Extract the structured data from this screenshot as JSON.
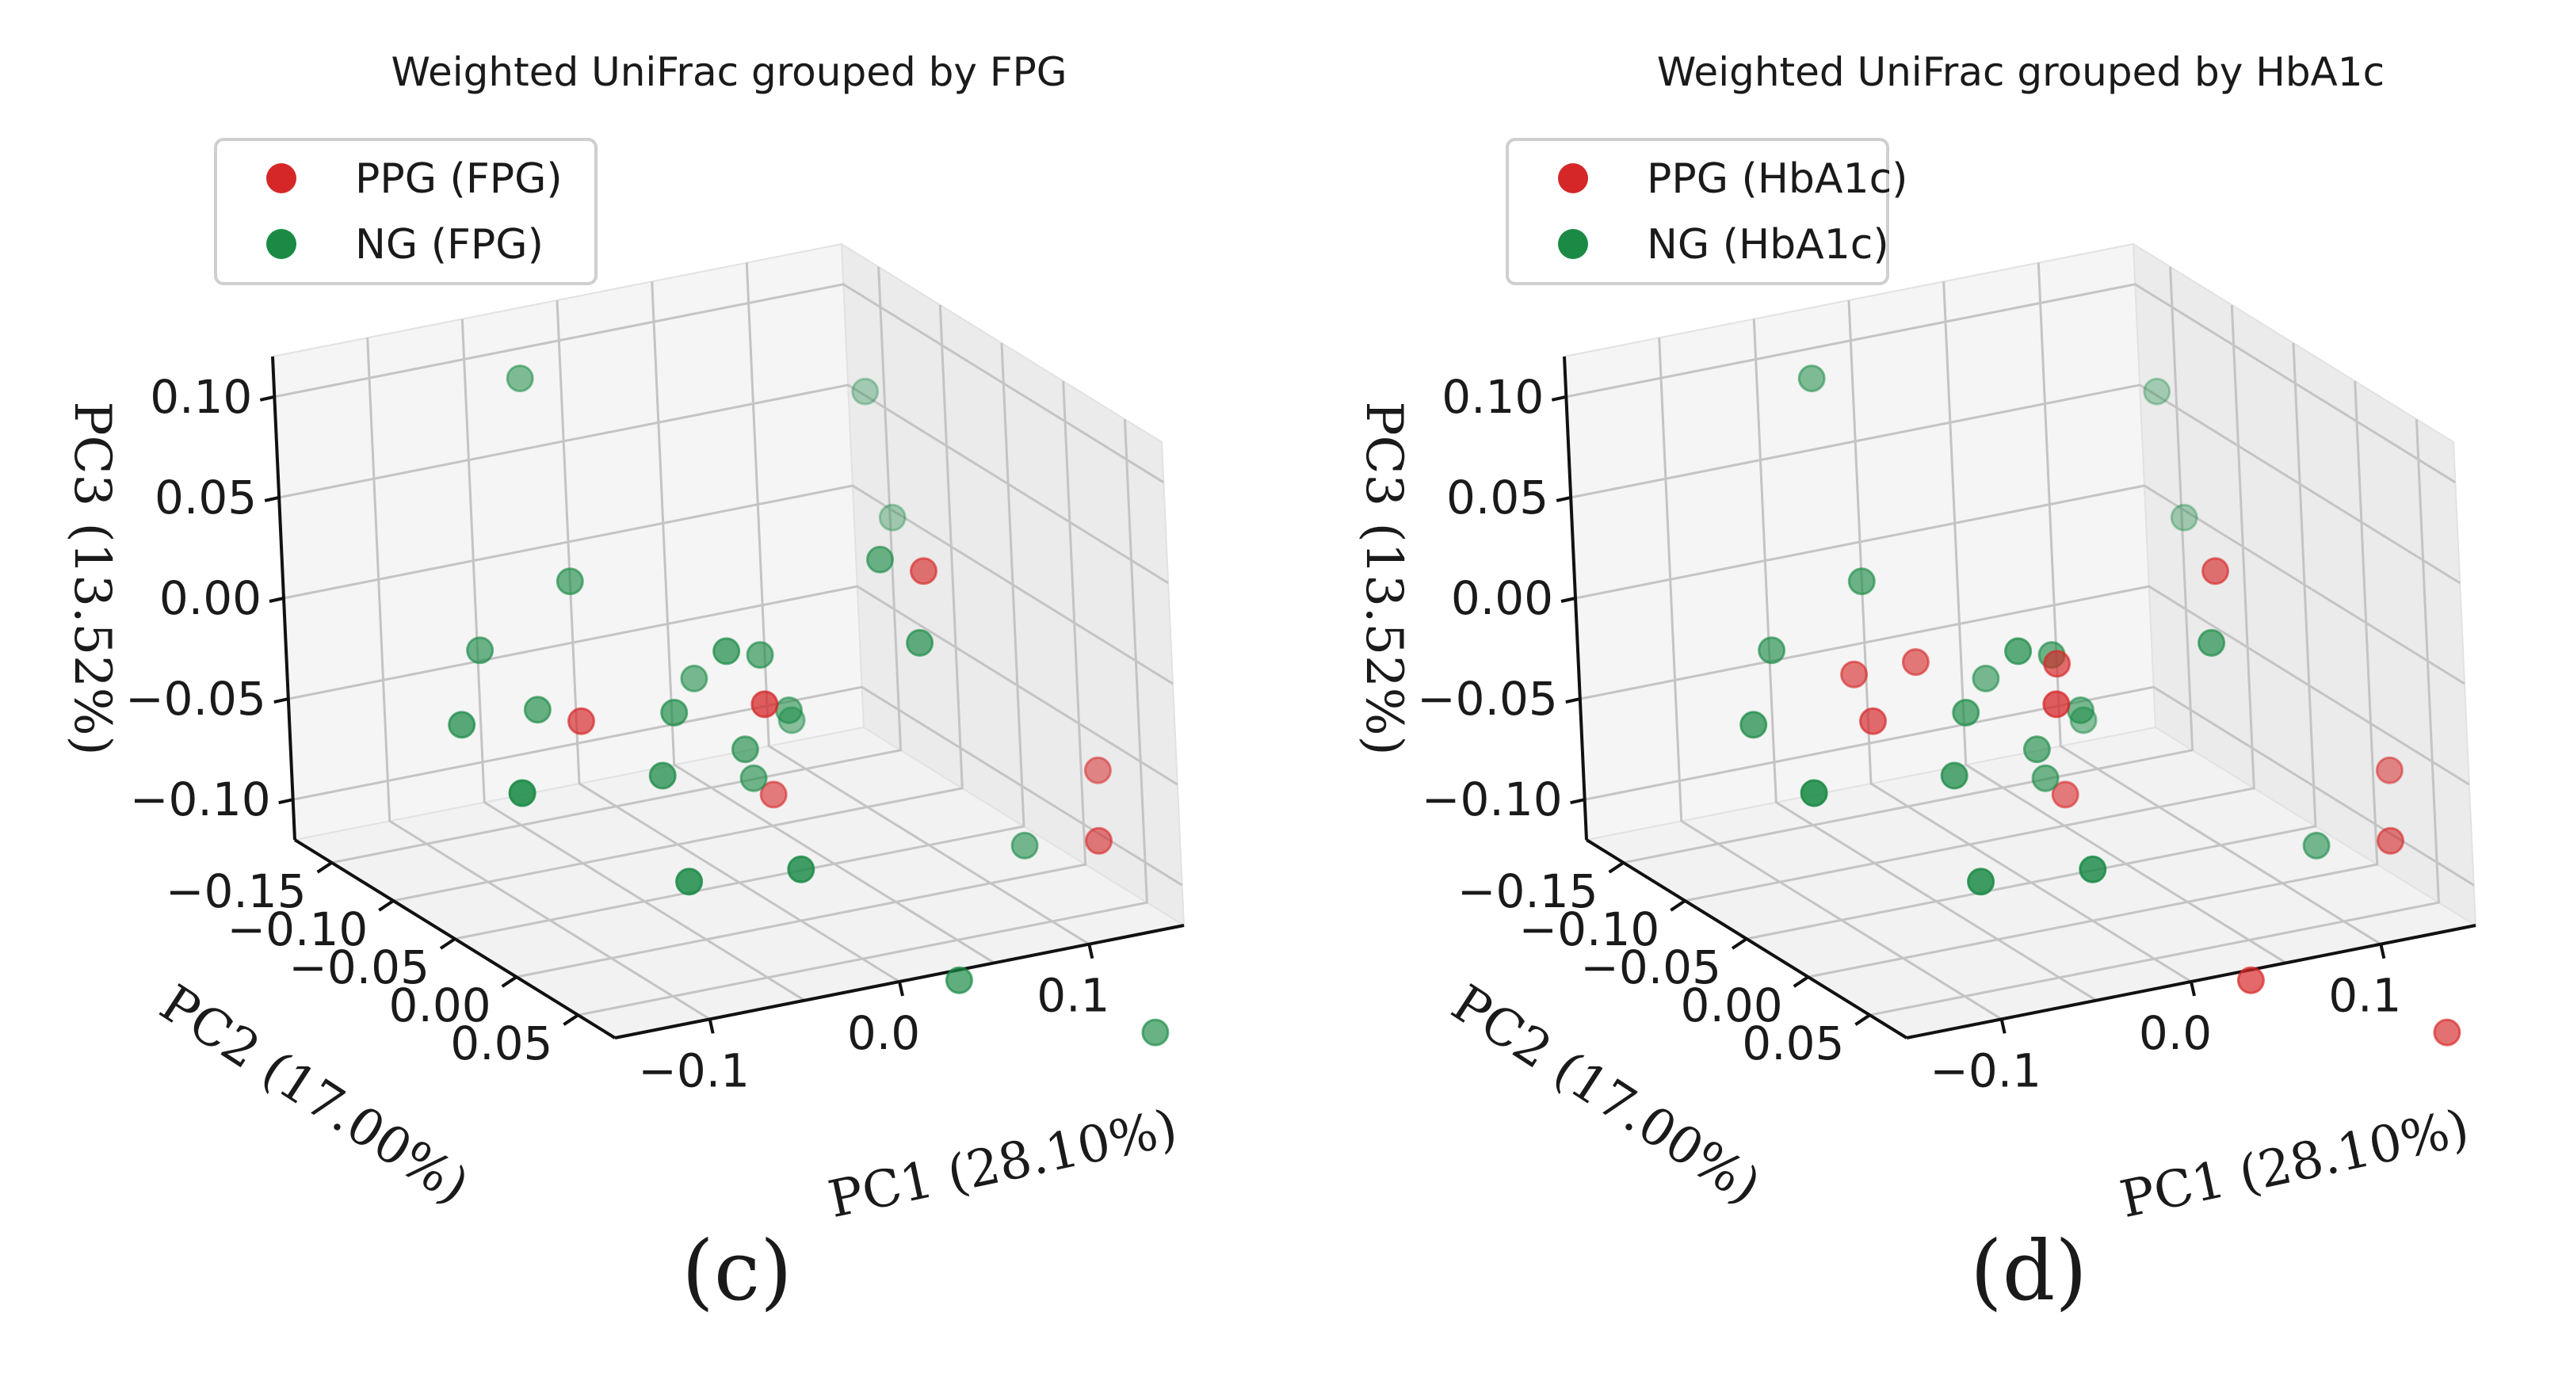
{
  "colors": {
    "ppg": "#d62728",
    "ng": "#1a8a45"
  },
  "chart_data": [
    {
      "type": "scatter",
      "panel_label": "(c)",
      "title": "Weighted UniFrac grouped by FPG",
      "legend": [
        "PPG (FPG)",
        "NG (FPG)"
      ],
      "xlabel": "PC1 (28.10%)",
      "ylabel": "PC2 (17.00%)",
      "zlabel": "PC3 (13.52%)",
      "xticks": [
        "0.1",
        "0.0",
        "−0.1"
      ],
      "yticks": [
        "−0.15",
        "−0.10",
        "−0.05",
        "0.00",
        "0.05"
      ],
      "zticks": [
        "0.10",
        "0.05",
        "0.00",
        "−0.05",
        "−0.10"
      ],
      "series": [
        {
          "name": "PPG (FPG)",
          "points": [
            [
              0.06,
              0.02,
              0.05
            ],
            [
              0.14,
              0.03,
              -0.06
            ],
            [
              0.12,
              0.06,
              -0.08
            ],
            [
              -0.02,
              0.01,
              -0.005
            ],
            [
              -0.06,
              -0.08,
              -0.04
            ],
            [
              0.02,
              -0.05,
              -0.08
            ]
          ]
        },
        {
          "name": "NG (FPG)",
          "points": [
            [
              0.14,
              -0.15,
              0.06
            ],
            [
              0.12,
              -0.1,
              0.02
            ],
            [
              0.05,
              0.0,
              0.05
            ],
            [
              0.05,
              0.03,
              0.02
            ],
            [
              -0.04,
              -0.15,
              0.1
            ],
            [
              -0.05,
              -0.1,
              0.02
            ],
            [
              0.01,
              -0.04,
              -0.005
            ],
            [
              -0.02,
              -0.02,
              0.01
            ],
            [
              -0.03,
              -0.05,
              -0.03
            ],
            [
              0.0,
              -0.08,
              -0.03
            ],
            [
              0.0,
              -0.04,
              -0.05
            ],
            [
              0.05,
              -0.08,
              -0.06
            ],
            [
              0.03,
              -0.05,
              -0.04
            ],
            [
              0.1,
              0.03,
              -0.09
            ],
            [
              -0.08,
              -0.13,
              -0.02
            ],
            [
              -0.07,
              -0.1,
              -0.04
            ],
            [
              -0.11,
              -0.1,
              -0.04
            ],
            [
              -0.07,
              0.02,
              -0.08
            ],
            [
              -0.13,
              -0.02,
              -0.04
            ],
            [
              -0.05,
              -0.03,
              -0.05
            ],
            [
              -0.03,
              0.05,
              -0.07
            ],
            [
              0.01,
              -0.05,
              -0.07
            ],
            [
              0.05,
              0.05,
              -0.14
            ],
            [
              0.12,
              0.1,
              -0.16
            ]
          ]
        }
      ]
    },
    {
      "type": "scatter",
      "panel_label": "(d)",
      "title": "Weighted UniFrac grouped by HbA1c",
      "legend": [
        "PPG (HbA1c)",
        "NG (HbA1c)"
      ],
      "xlabel": "PC1 (28.10%)",
      "ylabel": "PC2 (17.00%)",
      "zlabel": "PC3 (13.52%)",
      "xticks": [
        "0.1",
        "0.0",
        "−0.1"
      ],
      "yticks": [
        "−0.15",
        "−0.10",
        "−0.05",
        "0.00",
        "0.05"
      ],
      "zticks": [
        "0.10",
        "0.05",
        "0.00",
        "−0.05",
        "−0.10"
      ],
      "series": [
        {
          "name": "PPG (HbA1c)",
          "points": [
            [
              0.06,
              0.02,
              0.05
            ],
            [
              0.14,
              0.03,
              -0.06
            ],
            [
              0.12,
              0.06,
              -0.08
            ],
            [
              -0.02,
              0.01,
              -0.005
            ],
            [
              -0.06,
              -0.08,
              -0.04
            ],
            [
              0.02,
              -0.05,
              -0.08
            ],
            [
              0.0,
              -0.02,
              0.0
            ],
            [
              -0.03,
              -0.09,
              -0.02
            ],
            [
              -0.05,
              -0.11,
              -0.03
            ],
            [
              0.05,
              0.05,
              -0.14
            ],
            [
              0.12,
              0.1,
              -0.16
            ]
          ]
        },
        {
          "name": "NG (HbA1c)",
          "points": [
            [
              0.14,
              -0.15,
              0.06
            ],
            [
              0.12,
              -0.1,
              0.02
            ],
            [
              0.05,
              0.03,
              0.02
            ],
            [
              -0.04,
              -0.15,
              0.1
            ],
            [
              -0.05,
              -0.1,
              0.02
            ],
            [
              0.01,
              -0.04,
              -0.005
            ],
            [
              -0.02,
              -0.02,
              0.01
            ],
            [
              -0.03,
              -0.05,
              -0.03
            ],
            [
              0.0,
              -0.08,
              -0.03
            ],
            [
              0.0,
              -0.04,
              -0.05
            ],
            [
              0.05,
              -0.08,
              -0.06
            ],
            [
              0.03,
              -0.05,
              -0.04
            ],
            [
              0.1,
              0.03,
              -0.09
            ],
            [
              -0.08,
              -0.13,
              -0.02
            ],
            [
              -0.11,
              -0.1,
              -0.04
            ],
            [
              -0.07,
              0.02,
              -0.08
            ],
            [
              -0.13,
              -0.02,
              -0.04
            ],
            [
              -0.05,
              -0.03,
              -0.05
            ],
            [
              -0.03,
              0.05,
              -0.07
            ],
            [
              0.01,
              -0.05,
              -0.07
            ]
          ]
        }
      ]
    }
  ]
}
